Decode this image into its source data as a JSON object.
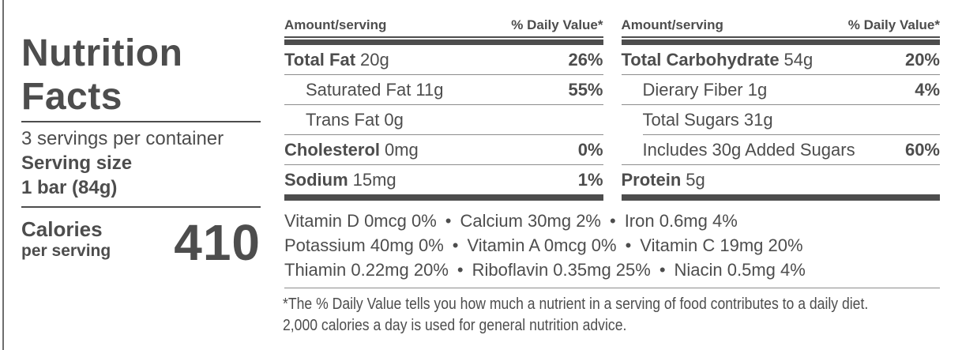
{
  "label": {
    "title": "Nutrition Facts",
    "servings_per_container": "3 servings per container",
    "serving_size_label": "Serving size",
    "serving_size_value": "1 bar (84g)",
    "calories_label": "Calories",
    "calories_sublabel": "per serving",
    "calories_value": "410"
  },
  "table_headers": {
    "amount": "Amount/serving",
    "daily_value": "% Daily Value*"
  },
  "columns": [
    {
      "rows": [
        {
          "bold": "Total Fat",
          "rest": "20g",
          "dv": "26%"
        },
        {
          "bold": "",
          "rest": "Saturated Fat 11g",
          "dv": "55%"
        },
        {
          "bold": "",
          "rest": "Trans Fat 0g",
          "dv": ""
        },
        {
          "bold": "Cholesterol",
          "rest": "0mg",
          "dv": "0%"
        },
        {
          "bold": "Sodium",
          "rest": "15mg",
          "dv": "1%"
        }
      ]
    },
    {
      "rows": [
        {
          "bold": "Total Carbohydrate",
          "rest": "54g",
          "dv": "20%"
        },
        {
          "bold": "",
          "rest": "Dierary Fiber 1g",
          "dv": "4%"
        },
        {
          "bold": "",
          "rest": "Total Sugars 31g",
          "dv": ""
        },
        {
          "bold": "",
          "rest": "Includes 30g Added Sugars",
          "dv": "60%"
        },
        {
          "bold": "Protein",
          "rest": "5g",
          "dv": ""
        }
      ]
    }
  ],
  "micronutrients": {
    "line1": "Vitamin D 0mcg 0% • Calcium 30mg 2% • Iron 0.6mg 4%",
    "line2": "Potassium 40mg 0% • Vitamin A 0mcg 0% • Vitamin C 19mg 20%",
    "line3": "Thiamin 0.22mg 20% • Riboflavin 0.35mg 25% • Niacin 0.5mg 4%"
  },
  "footnote": {
    "line1": "*The % Daily Value tells you how much a nutrient in a serving of food contributes to a daily diet.",
    "line2": "2,000 calories a day is used for general nutrition advice."
  },
  "colors": {
    "text": "#4d4d4d",
    "thick_bar": "#4d4d4d",
    "thin_rule": "#8c8c8c",
    "left_border": "#6e6e6e",
    "background": "#ffffff"
  }
}
